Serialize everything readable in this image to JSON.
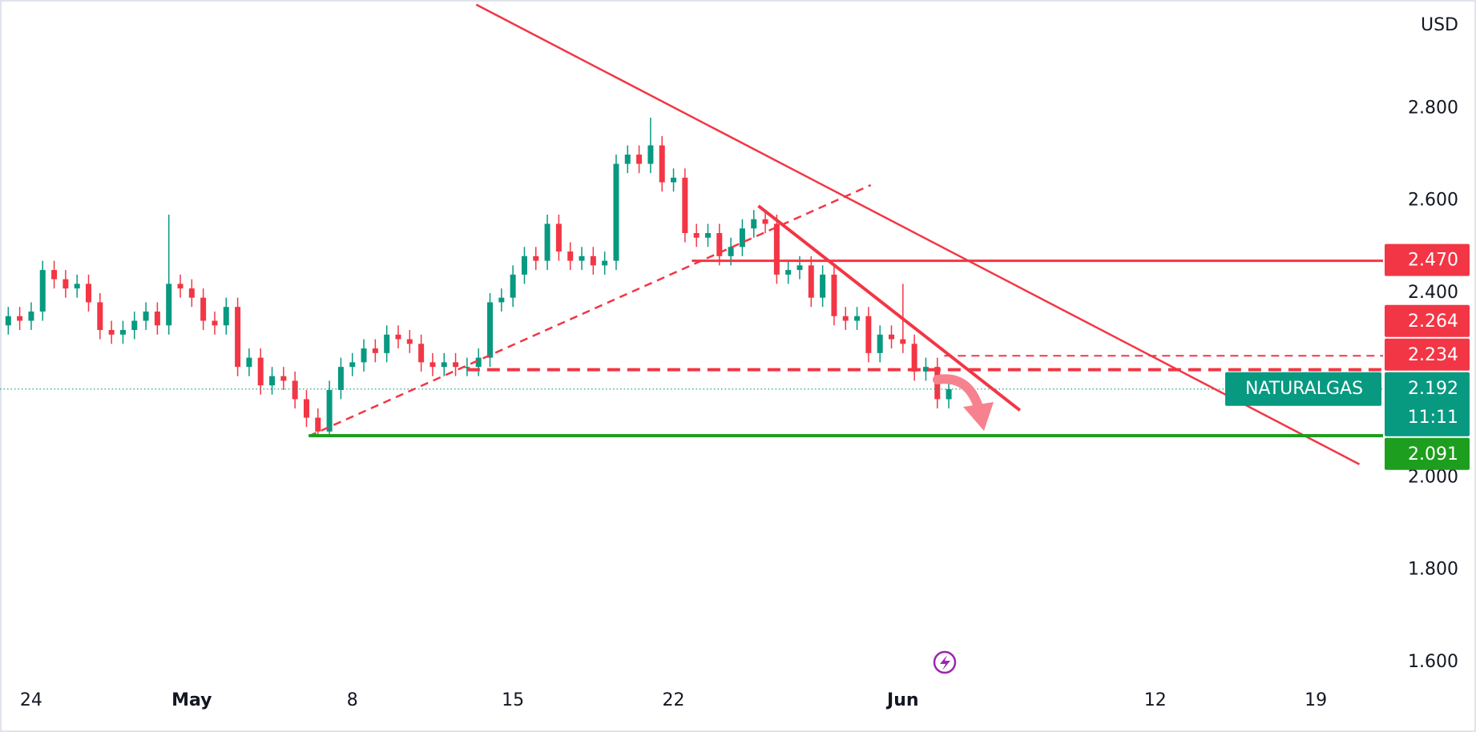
{
  "chart_data": {
    "type": "candlestick",
    "y_unit": "USD",
    "symbol": "NATURALGAS",
    "countdown": "11:11",
    "up_color": "#089981",
    "down_color": "#f23645",
    "xlim": [
      -1.36,
      58.93
    ],
    "ylim": [
      1.56,
      3.035
    ],
    "xticks": [
      {
        "value": 0,
        "label": "24"
      },
      {
        "value": 7,
        "label": "May"
      },
      {
        "value": 14,
        "label": "8"
      },
      {
        "value": 21,
        "label": "15"
      },
      {
        "value": 28,
        "label": "22"
      },
      {
        "value": 38,
        "label": "Jun"
      },
      {
        "value": 49,
        "label": "12"
      },
      {
        "value": 56,
        "label": "19"
      }
    ],
    "yticks": [
      {
        "value": 1.6,
        "label": "1.600"
      },
      {
        "value": 1.8,
        "label": "1.800"
      },
      {
        "value": 2.0,
        "label": "2.000"
      },
      {
        "value": 2.4,
        "label": "2.400"
      },
      {
        "value": 2.6,
        "label": "2.600"
      },
      {
        "value": 2.8,
        "label": "2.800"
      }
    ],
    "x": [
      -1,
      -0.5,
      0,
      0.5,
      1,
      1.5,
      2,
      2.5,
      3,
      3.5,
      4,
      4.5,
      5,
      5.5,
      6,
      6.5,
      7,
      7.5,
      8,
      8.5,
      9,
      9.5,
      10,
      10.5,
      11,
      11.5,
      12,
      12.5,
      13,
      13.5,
      14,
      14.5,
      15,
      15.5,
      16,
      16.5,
      17,
      17.5,
      18,
      18.5,
      19,
      19.5,
      20,
      20.5,
      21,
      21.5,
      22,
      22.5,
      23,
      23.5,
      24,
      24.5,
      25,
      25.5,
      26,
      26.5,
      27,
      27.5,
      28,
      28.5,
      29,
      29.5,
      30,
      30.5,
      31,
      31.5,
      32,
      32.5,
      33,
      33.5,
      34,
      34.5,
      35,
      35.5,
      36,
      36.5,
      37,
      37.5,
      38,
      38.5,
      39,
      39.5,
      40
    ],
    "open": [
      2.33,
      2.35,
      2.34,
      2.36,
      2.45,
      2.43,
      2.41,
      2.42,
      2.38,
      2.32,
      2.31,
      2.32,
      2.34,
      2.36,
      2.33,
      2.42,
      2.41,
      2.39,
      2.34,
      2.33,
      2.37,
      2.24,
      2.26,
      2.2,
      2.22,
      2.21,
      2.17,
      2.13,
      2.1,
      2.19,
      2.24,
      2.25,
      2.28,
      2.27,
      2.31,
      2.3,
      2.29,
      2.25,
      2.24,
      2.25,
      2.24,
      2.24,
      2.26,
      2.38,
      2.39,
      2.44,
      2.48,
      2.47,
      2.55,
      2.49,
      2.47,
      2.48,
      2.46,
      2.47,
      2.68,
      2.7,
      2.68,
      2.72,
      2.64,
      2.65,
      2.53,
      2.52,
      2.53,
      2.48,
      2.5,
      2.54,
      2.56,
      2.55,
      2.44,
      2.45,
      2.46,
      2.39,
      2.44,
      2.35,
      2.34,
      2.35,
      2.27,
      2.31,
      2.3,
      2.29,
      2.23,
      2.24,
      2.17
    ],
    "high": [
      2.37,
      2.37,
      2.38,
      2.47,
      2.47,
      2.45,
      2.44,
      2.44,
      2.4,
      2.34,
      2.34,
      2.36,
      2.38,
      2.38,
      2.57,
      2.44,
      2.43,
      2.41,
      2.36,
      2.39,
      2.39,
      2.28,
      2.28,
      2.24,
      2.24,
      2.23,
      2.19,
      2.15,
      2.21,
      2.26,
      2.27,
      2.3,
      2.3,
      2.33,
      2.33,
      2.32,
      2.31,
      2.27,
      2.27,
      2.27,
      2.26,
      2.28,
      2.4,
      2.41,
      2.46,
      2.5,
      2.5,
      2.57,
      2.57,
      2.51,
      2.5,
      2.5,
      2.49,
      2.7,
      2.72,
      2.72,
      2.78,
      2.74,
      2.67,
      2.67,
      2.55,
      2.55,
      2.55,
      2.52,
      2.56,
      2.58,
      2.58,
      2.57,
      2.47,
      2.48,
      2.48,
      2.46,
      2.46,
      2.37,
      2.37,
      2.37,
      2.33,
      2.33,
      2.42,
      2.31,
      2.26,
      2.26,
      2.21
    ],
    "low": [
      2.31,
      2.32,
      2.32,
      2.34,
      2.41,
      2.39,
      2.39,
      2.36,
      2.3,
      2.29,
      2.29,
      2.3,
      2.32,
      2.31,
      2.31,
      2.39,
      2.37,
      2.32,
      2.31,
      2.31,
      2.22,
      2.22,
      2.18,
      2.18,
      2.19,
      2.15,
      2.11,
      2.09,
      2.09,
      2.17,
      2.22,
      2.23,
      2.25,
      2.25,
      2.28,
      2.27,
      2.23,
      2.22,
      2.22,
      2.22,
      2.22,
      2.22,
      2.24,
      2.36,
      2.37,
      2.42,
      2.45,
      2.45,
      2.47,
      2.45,
      2.45,
      2.44,
      2.44,
      2.45,
      2.66,
      2.66,
      2.66,
      2.62,
      2.62,
      2.51,
      2.5,
      2.5,
      2.46,
      2.46,
      2.48,
      2.52,
      2.53,
      2.42,
      2.42,
      2.43,
      2.37,
      2.37,
      2.33,
      2.32,
      2.32,
      2.25,
      2.25,
      2.28,
      2.27,
      2.21,
      2.21,
      2.15,
      2.15
    ],
    "close": [
      2.35,
      2.34,
      2.36,
      2.45,
      2.43,
      2.41,
      2.42,
      2.38,
      2.32,
      2.31,
      2.32,
      2.34,
      2.36,
      2.33,
      2.42,
      2.41,
      2.39,
      2.34,
      2.33,
      2.37,
      2.24,
      2.26,
      2.2,
      2.22,
      2.21,
      2.17,
      2.13,
      2.1,
      2.19,
      2.24,
      2.25,
      2.28,
      2.27,
      2.31,
      2.3,
      2.29,
      2.25,
      2.24,
      2.25,
      2.24,
      2.24,
      2.26,
      2.38,
      2.39,
      2.44,
      2.48,
      2.47,
      2.55,
      2.49,
      2.47,
      2.48,
      2.46,
      2.47,
      2.68,
      2.7,
      2.68,
      2.72,
      2.64,
      2.65,
      2.53,
      2.52,
      2.53,
      2.48,
      2.5,
      2.54,
      2.56,
      2.55,
      2.44,
      2.45,
      2.46,
      2.39,
      2.44,
      2.35,
      2.34,
      2.35,
      2.27,
      2.31,
      2.3,
      2.29,
      2.23,
      2.24,
      2.17,
      2.192
    ],
    "last_price": {
      "value": 2.192,
      "label": "2.192",
      "color": "#089981"
    },
    "price_labels": [
      {
        "value": 2.47,
        "label": "2.470",
        "color": "#f23645"
      },
      {
        "value": 2.264,
        "label": "2.264",
        "color": "#f23645"
      },
      {
        "value": 2.234,
        "label": "2.234",
        "color": "#f23645"
      },
      {
        "value": 2.091,
        "label": "2.091",
        "color": "#1e9e1e"
      }
    ],
    "drawings": [
      {
        "x": [
          19.4,
          57.9
        ],
        "y": [
          3.025,
          2.029
        ],
        "color": "#f23645",
        "style": "solid",
        "width": 2.5
      },
      {
        "x": [
          12.1,
          36.6
        ],
        "y": [
          2.09,
          2.634
        ],
        "color": "#f23645",
        "style": "dashed",
        "width": 2.5
      },
      {
        "x": [
          28.8,
          58.93
        ],
        "y": [
          2.47,
          2.47
        ],
        "color": "#f23645",
        "style": "solid",
        "width": 3
      },
      {
        "x": [
          19.0,
          58.93
        ],
        "y": [
          2.234,
          2.234
        ],
        "color": "#f23645",
        "style": "dashed",
        "width": 4
      },
      {
        "x": [
          39.8,
          58.93
        ],
        "y": [
          2.264,
          2.264
        ],
        "color": "#f23645",
        "style": "dashed",
        "width": 2
      },
      {
        "x": [
          12.1,
          58.93
        ],
        "y": [
          2.091,
          2.091
        ],
        "color": "#1e9e1e",
        "style": "solid",
        "width": 4
      },
      {
        "x": [
          31.7,
          43.1
        ],
        "y": [
          2.589,
          2.146
        ],
        "color": "#f23645",
        "style": "solid",
        "width": 4
      }
    ]
  }
}
